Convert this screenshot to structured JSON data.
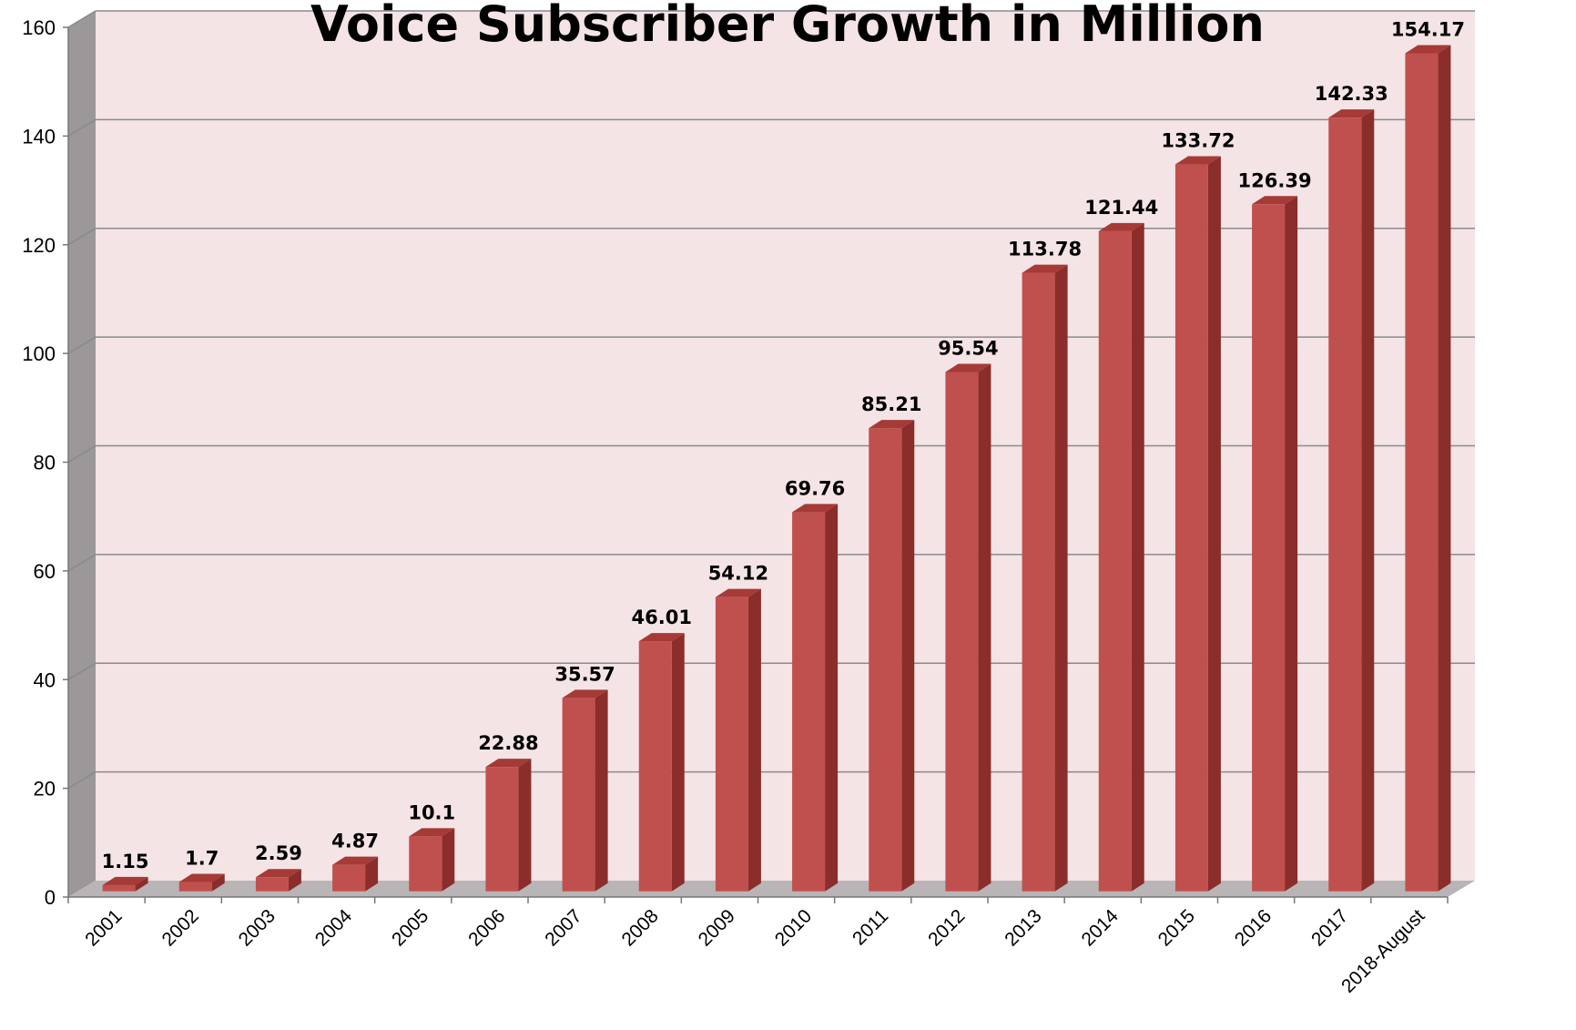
{
  "chart_data": {
    "type": "bar",
    "title": "Voice Subscriber Growth  in Million",
    "categories": [
      "2001",
      "2002",
      "2003",
      "2004",
      "2005",
      "2006",
      "2007",
      "2008",
      "2009",
      "2010",
      "2011",
      "2012",
      "2013",
      "2014",
      "2015",
      "2016",
      "2017",
      "2018-August"
    ],
    "values": [
      1.15,
      1.7,
      2.59,
      4.87,
      10.1,
      22.88,
      35.57,
      46.01,
      54.12,
      69.76,
      85.21,
      95.54,
      113.78,
      121.44,
      133.72,
      126.39,
      142.33,
      154.17
    ],
    "data_labels": [
      "1.15",
      "1.7",
      "2.59",
      "4.87",
      "10.1",
      "22.88",
      "35.57",
      "46.01",
      "54.12",
      "69.76",
      "85.21",
      "95.54",
      "113.78",
      "121.44",
      "133.72",
      "126.39",
      "142.33",
      "154.17"
    ],
    "xlabel": "",
    "ylabel": "",
    "ylim": [
      0,
      160
    ],
    "yticks": [
      "0",
      "20",
      "40",
      "60",
      "80",
      "100",
      "120",
      "140",
      "160"
    ],
    "grid": true,
    "legend": "none",
    "three_d": true,
    "colors": {
      "bar_front": "#c0504d",
      "bar_side": "#8b2e2b",
      "bar_top": "#a53a37",
      "wall": "#f4e4e6",
      "side_wall": "#9c9798",
      "floor": "#b9b4b5",
      "grid": "#8a8a8a"
    }
  }
}
